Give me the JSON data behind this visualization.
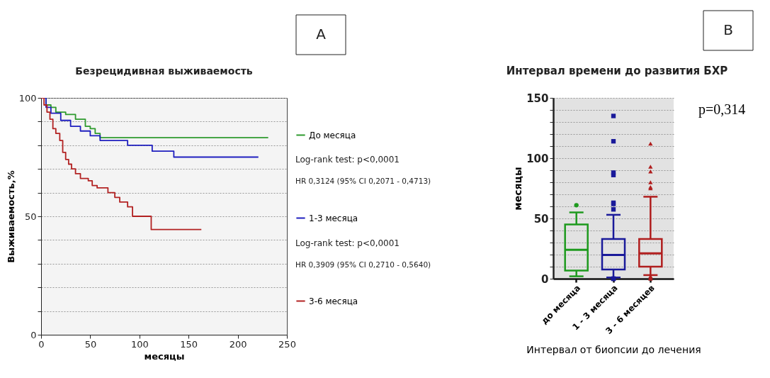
{
  "chart_data": [
    {
      "type": "step",
      "title": "Безрецидивная выживаемость",
      "xlabel": "месяцы",
      "ylabel": "Выживаемость,%",
      "xlim": [
        0,
        250
      ],
      "xticks": [
        0,
        50,
        100,
        150,
        200,
        250
      ],
      "ylim": [
        0,
        100
      ],
      "yticks": [
        0,
        {
          "value": 10,
          "label": null
        },
        {
          "value": 20,
          "label": null
        },
        {
          "value": 30,
          "label": null
        },
        {
          "value": 40,
          "label": null
        },
        50,
        {
          "value": 60,
          "label": null
        },
        {
          "value": 70,
          "label": null
        },
        {
          "value": 80,
          "label": null
        },
        {
          "value": 90,
          "label": null
        },
        100
      ],
      "grid": "y",
      "legend": "right",
      "line_style": "solid",
      "annotations": [
        "A",
        "Log-rank test: p<0,0001",
        "HR 0,3124 (95% CI 0,2071 - 0,4713)",
        "Log-rank test: p<0,0001",
        "HR 0,3909 (95% CI 0,2710 - 0,5640)"
      ],
      "series": [
        {
          "name": "До месяца",
          "color": "#2e9a2e",
          "x": [
            0,
            5,
            10,
            15,
            25,
            35,
            45,
            50,
            55,
            60,
            231
          ],
          "values": [
            100,
            97,
            96,
            94,
            93,
            91,
            88,
            87,
            85,
            83.2,
            83.2
          ]
        },
        {
          "name": "1-3 месяца",
          "color": "#1f1fbf",
          "x": [
            0,
            5,
            10,
            20,
            30,
            40,
            50,
            60,
            88,
            113,
            135,
            221
          ],
          "values": [
            100,
            96,
            93.5,
            90.5,
            88,
            86,
            84,
            82,
            80,
            77.5,
            75,
            75
          ]
        },
        {
          "name": "3-6 месяца",
          "color": "#b22222",
          "x": [
            0,
            3,
            6,
            9,
            12,
            15,
            19,
            22,
            25,
            28,
            31,
            35,
            40,
            48,
            52,
            57,
            68,
            75,
            80,
            88,
            93,
            112,
            163
          ],
          "values": [
            100,
            97,
            94,
            91,
            87,
            85,
            82,
            77,
            74,
            72,
            70,
            68,
            66,
            65,
            63,
            62,
            60,
            58,
            56,
            54,
            50,
            44.4,
            44.4
          ]
        }
      ]
    },
    {
      "type": "box",
      "title": "Интервал времени до развития БХР",
      "xlabel": "Интервал от биопсии до лечения",
      "ylabel": "месяцы",
      "categories": [
        "до месяца",
        "1 - 3 месяца",
        "3 - 6 месяцев"
      ],
      "colors": [
        "#1e9a1e",
        "#1a1a9a",
        "#b01e1e"
      ],
      "ylim": [
        0,
        150
      ],
      "yticks": [
        0,
        {
          "value": 10,
          "label": null
        },
        {
          "value": 20,
          "label": null
        },
        {
          "value": 30,
          "label": null
        },
        {
          "value": 40,
          "label": null
        },
        50,
        {
          "value": 60,
          "label": null
        },
        {
          "value": 70,
          "label": null
        },
        {
          "value": 80,
          "label": null
        },
        {
          "value": 90,
          "label": null
        },
        100,
        {
          "value": 110,
          "label": null
        },
        {
          "value": 120,
          "label": null
        },
        {
          "value": 130,
          "label": null
        },
        {
          "value": 140,
          "label": null
        },
        150
      ],
      "grid": "y",
      "annotations": [
        "B",
        "p=0,314"
      ],
      "boxes": [
        {
          "low": 2,
          "q1": 6.7,
          "median": 24,
          "q3": 45,
          "high": 55,
          "outliers": [
            61
          ]
        },
        {
          "low": 1,
          "q1": 7.7,
          "median": 19.7,
          "q3": 33,
          "high": 53,
          "outliers": [
            0,
            0,
            0,
            57.5,
            62,
            63,
            86,
            88,
            114,
            135
          ]
        },
        {
          "low": 3,
          "q1": 10,
          "median": 21,
          "q3": 33,
          "high": 68,
          "outliers": [
            0,
            1,
            2,
            75,
            76,
            80,
            89,
            93,
            112
          ]
        }
      ]
    }
  ]
}
